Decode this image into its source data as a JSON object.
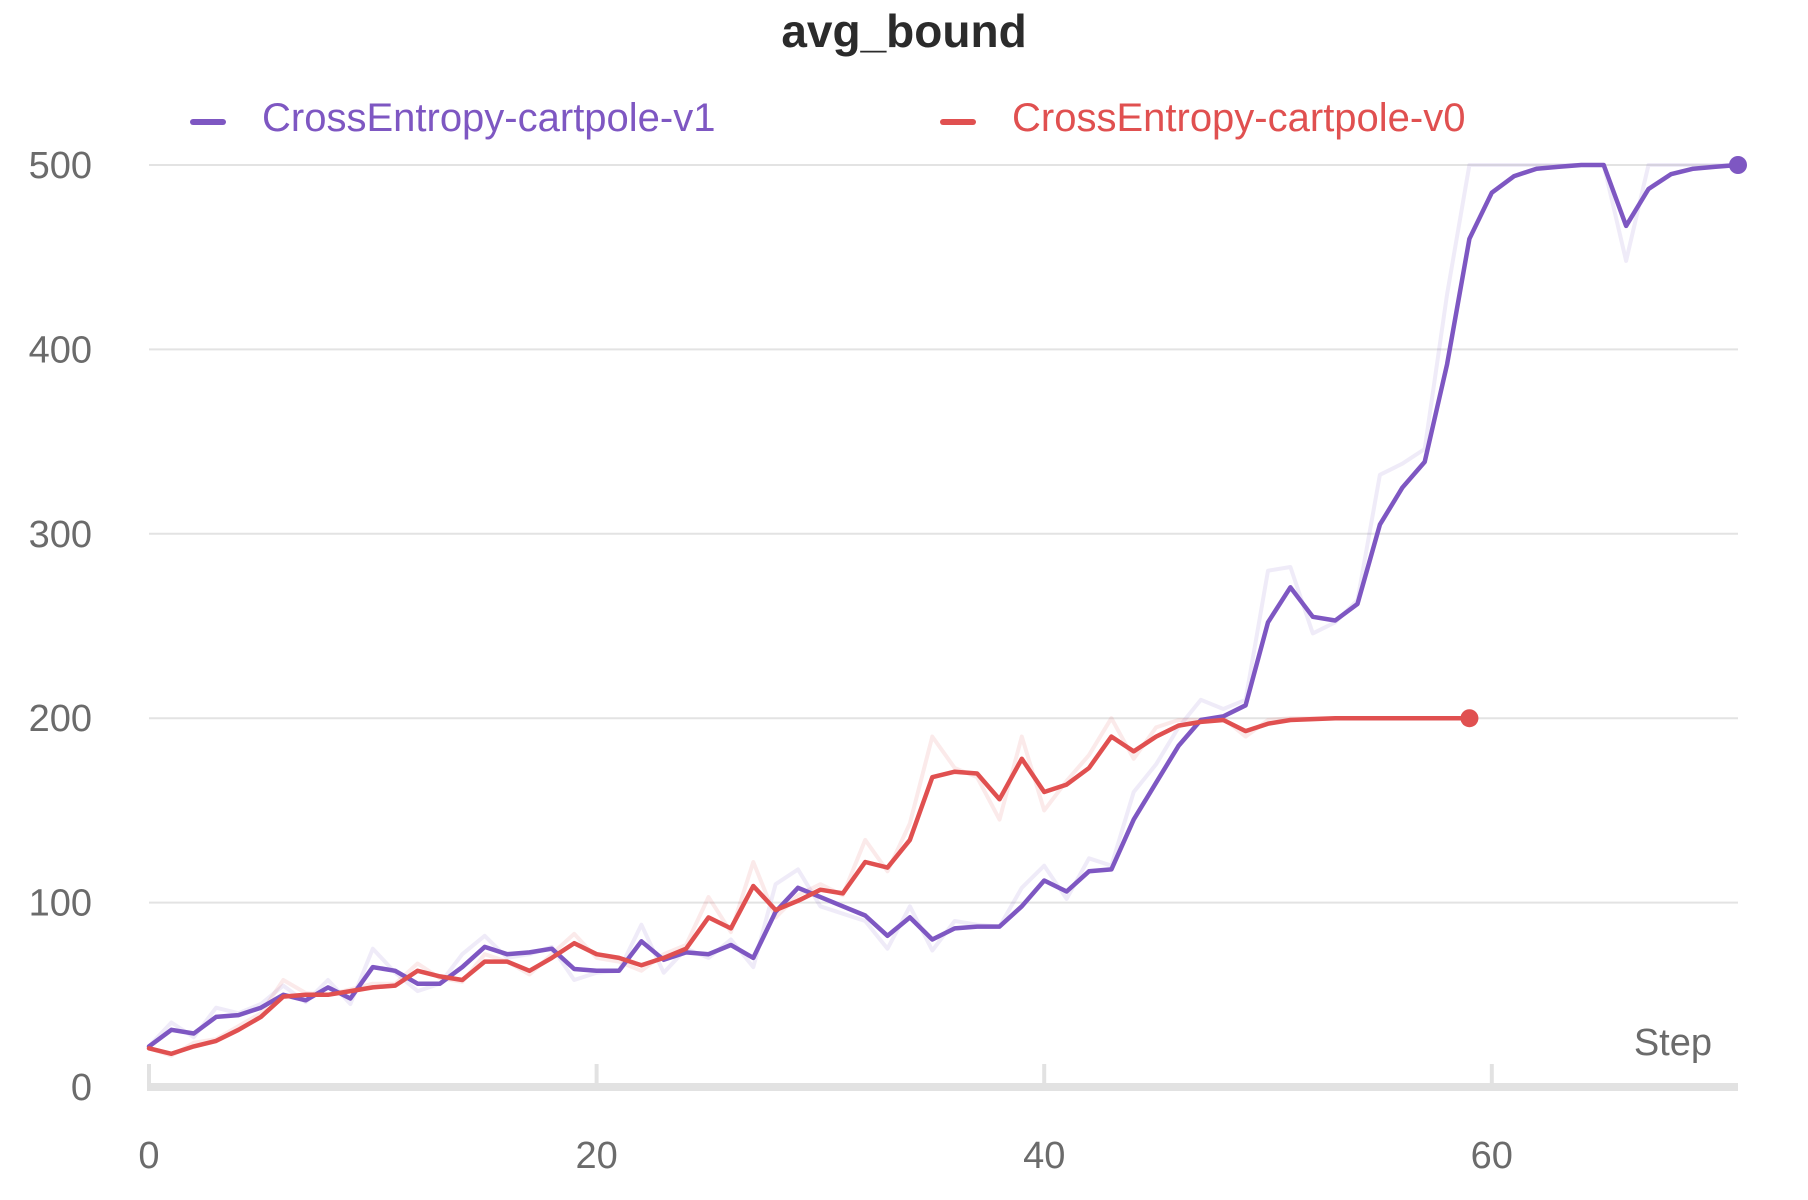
{
  "chart_data": {
    "type": "line",
    "title": "avg_bound",
    "xlabel": "Step",
    "ylabel": "",
    "xlim": [
      0,
      71
    ],
    "ylim": [
      0,
      500
    ],
    "x_ticks": [
      0,
      20,
      40,
      60
    ],
    "y_ticks": [
      0,
      100,
      200,
      300,
      400,
      500
    ],
    "grid": "horizontal",
    "legend_position": "top",
    "series": [
      {
        "name": "CrossEntropy-cartpole-v1",
        "color": "#7e57c2",
        "x": [
          0,
          1,
          2,
          3,
          4,
          5,
          6,
          7,
          8,
          9,
          10,
          11,
          12,
          13,
          14,
          15,
          16,
          17,
          18,
          19,
          20,
          21,
          22,
          23,
          24,
          25,
          26,
          27,
          28,
          29,
          30,
          31,
          32,
          33,
          34,
          35,
          36,
          37,
          38,
          39,
          40,
          41,
          42,
          43,
          44,
          45,
          46,
          47,
          48,
          49,
          50,
          51,
          52,
          53,
          54,
          55,
          56,
          57,
          58,
          59,
          60,
          61,
          62,
          63,
          64,
          65,
          66,
          67,
          68,
          69,
          70,
          71
        ],
        "smoothed": [
          22,
          31,
          29,
          38,
          39,
          43,
          50,
          47,
          54,
          48,
          65,
          63,
          56,
          56,
          65,
          76,
          72,
          73,
          75,
          64,
          63,
          63,
          79,
          69,
          73,
          72,
          77,
          70,
          95,
          108,
          103,
          98,
          93,
          82,
          92,
          80,
          86,
          87,
          87,
          98,
          112,
          106,
          117,
          118,
          145,
          165,
          185,
          199,
          201,
          207,
          252,
          271,
          255,
          253,
          262,
          305,
          325,
          339,
          392,
          460,
          485,
          494,
          498,
          499,
          500,
          500,
          467,
          487,
          495,
          498,
          499,
          500
        ],
        "raw": [
          22,
          35,
          27,
          43,
          40,
          45,
          55,
          46,
          58,
          45,
          75,
          62,
          52,
          56,
          72,
          82,
          70,
          72,
          76,
          58,
          62,
          63,
          88,
          62,
          75,
          70,
          80,
          65,
          110,
          118,
          98,
          94,
          90,
          75,
          98,
          74,
          90,
          88,
          87,
          108,
          120,
          102,
          124,
          120,
          160,
          175,
          195,
          210,
          205,
          210,
          280,
          282,
          246,
          252,
          264,
          332,
          338,
          346,
          430,
          500,
          500,
          500,
          500,
          500,
          500,
          500,
          448,
          500,
          500,
          500,
          500,
          500
        ],
        "endpoint": [
          71,
          500
        ]
      },
      {
        "name": "CrossEntropy-cartpole-v0",
        "color": "#e05050",
        "x": [
          0,
          1,
          2,
          3,
          4,
          5,
          6,
          7,
          8,
          9,
          10,
          11,
          12,
          13,
          14,
          15,
          16,
          17,
          18,
          19,
          20,
          21,
          22,
          23,
          24,
          25,
          26,
          27,
          28,
          29,
          30,
          31,
          32,
          33,
          34,
          35,
          36,
          37,
          38,
          39,
          40,
          41,
          42,
          43,
          44,
          45,
          46,
          47,
          48,
          49,
          50,
          51,
          52,
          53,
          54,
          55,
          56,
          57,
          58,
          59
        ],
        "smoothed": [
          21,
          18,
          22,
          25,
          31,
          38,
          49,
          50,
          50,
          52,
          54,
          55,
          63,
          60,
          58,
          68,
          68,
          63,
          70,
          78,
          72,
          70,
          66,
          70,
          75,
          92,
          86,
          109,
          96,
          101,
          107,
          105,
          122,
          119,
          134,
          168,
          171,
          170,
          156,
          178,
          160,
          164,
          173,
          190,
          182,
          190,
          196,
          198,
          199,
          193,
          197,
          199,
          199.5,
          200,
          200,
          200,
          200,
          200,
          200,
          200
        ],
        "raw": [
          21,
          17,
          24,
          26,
          33,
          40,
          58,
          51,
          50,
          53,
          56,
          56,
          67,
          59,
          57,
          72,
          68,
          61,
          72,
          83,
          70,
          68,
          63,
          72,
          77,
          103,
          84,
          122,
          92,
          104,
          110,
          104,
          134,
          117,
          143,
          190,
          173,
          168,
          145,
          190,
          150,
          166,
          180,
          200,
          178,
          195,
          199,
          199,
          200,
          190,
          199,
          200,
          200,
          200,
          200,
          200,
          200,
          200,
          200,
          200
        ],
        "endpoint": [
          59,
          200
        ]
      }
    ]
  }
}
